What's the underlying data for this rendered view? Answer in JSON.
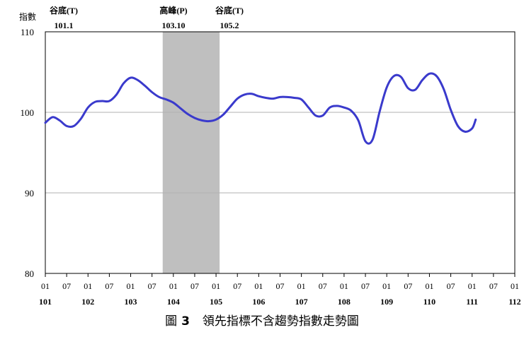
{
  "chart_data": {
    "type": "line",
    "ylabel": "指數",
    "ylim": [
      80,
      110
    ],
    "yticks": [
      80,
      90,
      100,
      110
    ],
    "x_range": [
      "101-01",
      "112-01"
    ],
    "month_ticks": [
      "01",
      "07"
    ],
    "year_labels": [
      "101",
      "102",
      "103",
      "104",
      "105",
      "106",
      "107",
      "108",
      "109",
      "110",
      "111",
      "112"
    ],
    "grid": "horizontal",
    "line_color": "#3a3acc",
    "shade_color": "#bfbfbf",
    "shaded_periods": [
      {
        "from": "103-10",
        "to": "105-02"
      }
    ],
    "turning_points": [
      {
        "label": "谷底(T)",
        "value": "101.1"
      },
      {
        "label": "高峰(P)",
        "value": "103.10"
      },
      {
        "label": "谷底(T)",
        "value": "105.2"
      }
    ],
    "series": [
      {
        "points": [
          [
            "101-01",
            98.7
          ],
          [
            "101-03",
            99.4
          ],
          [
            "101-05",
            99.0
          ],
          [
            "101-07",
            98.3
          ],
          [
            "101-09",
            98.3
          ],
          [
            "101-11",
            99.2
          ],
          [
            "102-01",
            100.6
          ],
          [
            "102-03",
            101.3
          ],
          [
            "102-05",
            101.4
          ],
          [
            "102-07",
            101.4
          ],
          [
            "102-09",
            102.2
          ],
          [
            "102-11",
            103.6
          ],
          [
            "103-01",
            104.3
          ],
          [
            "103-03",
            104.0
          ],
          [
            "103-05",
            103.3
          ],
          [
            "103-07",
            102.5
          ],
          [
            "103-09",
            101.9
          ],
          [
            "103-11",
            101.6
          ],
          [
            "104-01",
            101.2
          ],
          [
            "104-03",
            100.5
          ],
          [
            "104-05",
            99.8
          ],
          [
            "104-07",
            99.3
          ],
          [
            "104-09",
            99.0
          ],
          [
            "104-11",
            98.9
          ],
          [
            "105-01",
            99.1
          ],
          [
            "105-03",
            99.7
          ],
          [
            "105-05",
            100.7
          ],
          [
            "105-07",
            101.7
          ],
          [
            "105-09",
            102.2
          ],
          [
            "105-11",
            102.3
          ],
          [
            "106-01",
            102.0
          ],
          [
            "106-03",
            101.8
          ],
          [
            "106-05",
            101.7
          ],
          [
            "106-07",
            101.9
          ],
          [
            "106-09",
            101.9
          ],
          [
            "106-11",
            101.8
          ],
          [
            "107-01",
            101.6
          ],
          [
            "107-03",
            100.6
          ],
          [
            "107-05",
            99.6
          ],
          [
            "107-07",
            99.6
          ],
          [
            "107-09",
            100.6
          ],
          [
            "107-11",
            100.8
          ],
          [
            "108-01",
            100.6
          ],
          [
            "108-03",
            100.2
          ],
          [
            "108-05",
            99.0
          ],
          [
            "108-07",
            96.4
          ],
          [
            "108-09",
            96.6
          ],
          [
            "108-11",
            100.1
          ],
          [
            "109-01",
            103.1
          ],
          [
            "109-03",
            104.5
          ],
          [
            "109-05",
            104.4
          ],
          [
            "109-07",
            103.0
          ],
          [
            "109-09",
            102.8
          ],
          [
            "109-11",
            104.0
          ],
          [
            "110-01",
            104.8
          ],
          [
            "110-03",
            104.5
          ],
          [
            "110-05",
            102.9
          ],
          [
            "110-07",
            100.3
          ],
          [
            "110-09",
            98.3
          ],
          [
            "110-11",
            97.6
          ],
          [
            "111-01",
            98.0
          ],
          [
            "111-02",
            99.1
          ]
        ]
      }
    ]
  },
  "caption": {
    "figure_label": "圖",
    "figure_number": "3",
    "text": "領先指標不含趨勢指數走勢圖"
  }
}
